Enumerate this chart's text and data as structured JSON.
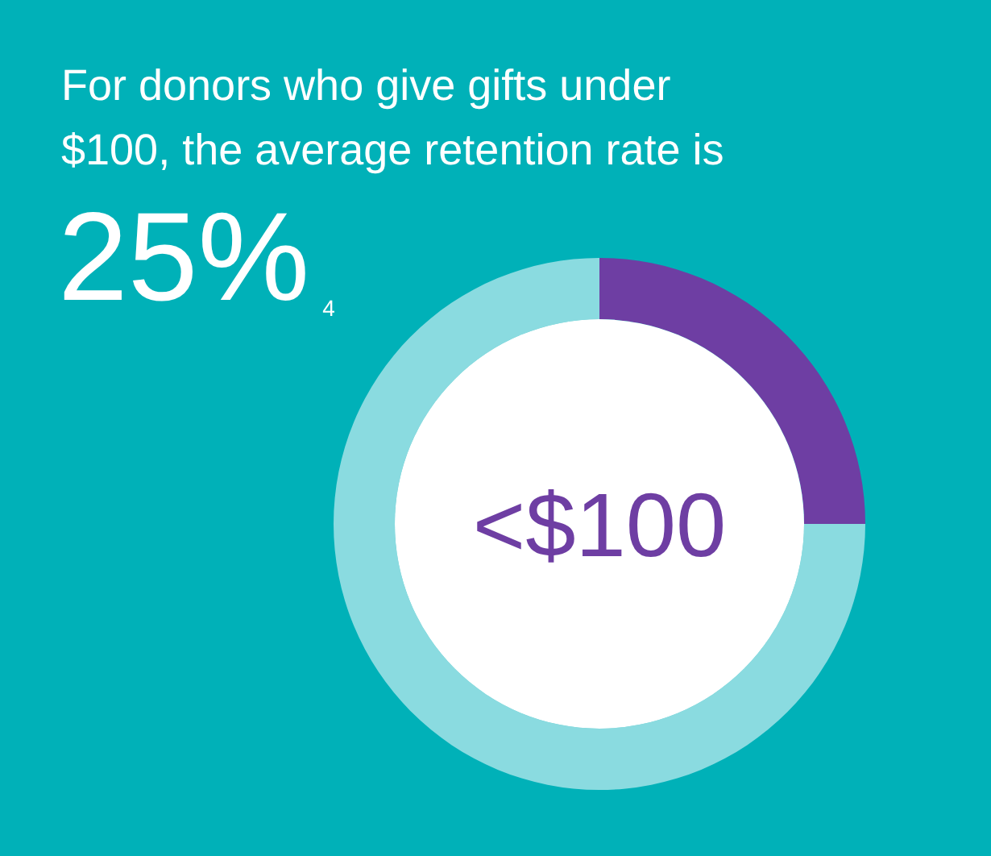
{
  "chart_data": {
    "type": "donut",
    "title": "For donors who give gifts under $100, the average retention rate is",
    "categories": [
      null,
      null
    ],
    "values": [
      25,
      75
    ],
    "colors": [
      "#6e3ea3",
      "#8adbe0"
    ],
    "annotations": [
      "25%$_{4}$",
      "<$100"
    ]
  }
}
